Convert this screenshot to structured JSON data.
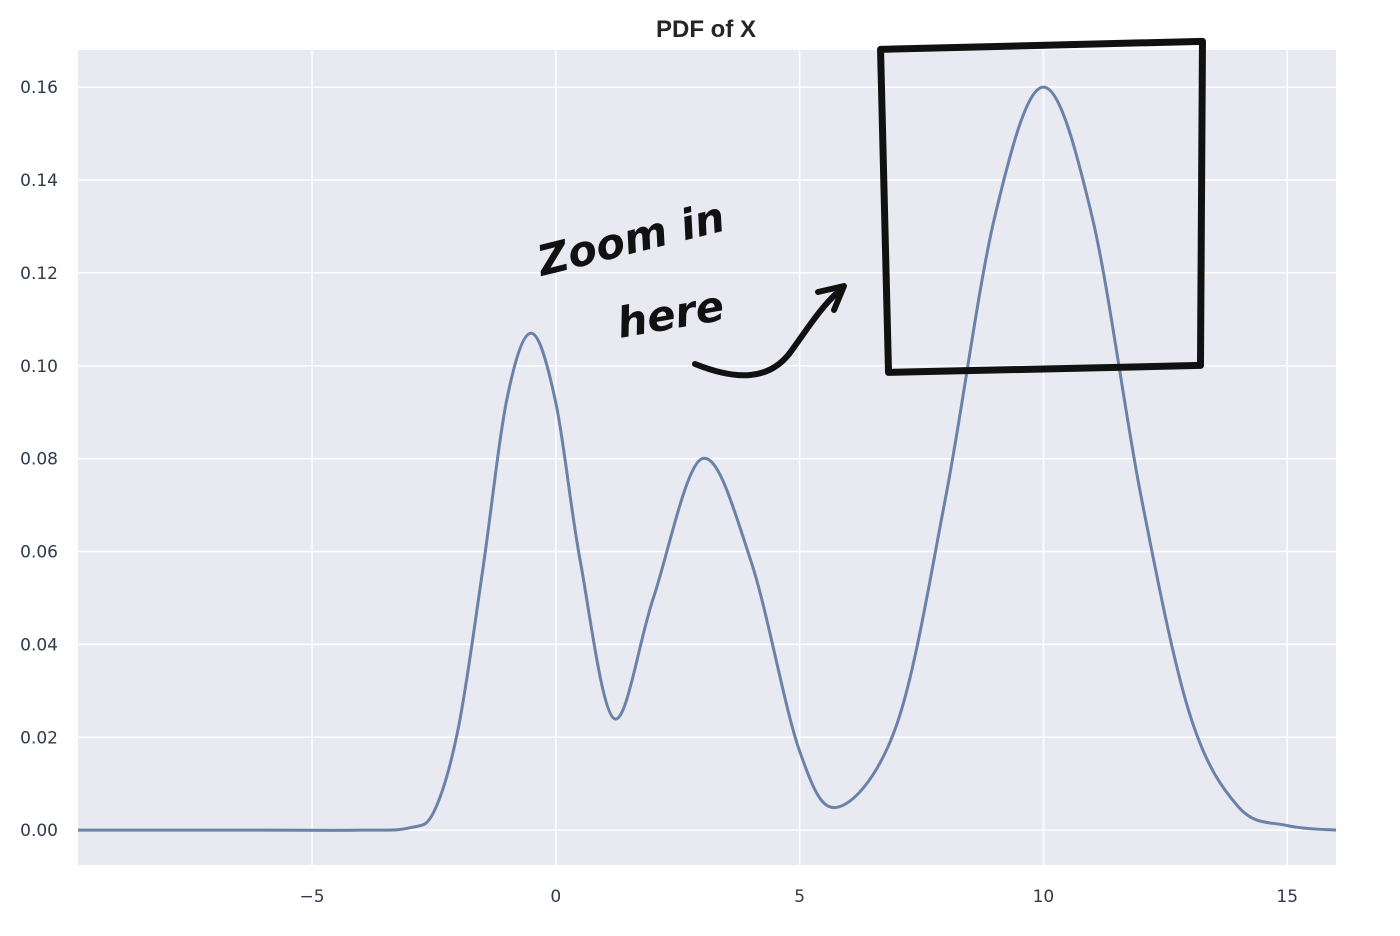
{
  "chart_data": {
    "type": "line",
    "title": "PDF of X",
    "xlabel": "",
    "ylabel": "",
    "xlim": [
      -9.8,
      16.0
    ],
    "ylim": [
      -0.0075,
      0.168
    ],
    "x_ticks": [
      -5,
      0,
      5,
      10,
      15
    ],
    "x_tick_labels": [
      "−5",
      "0",
      "5",
      "10",
      "15"
    ],
    "y_ticks": [
      0.0,
      0.02,
      0.04,
      0.06,
      0.08,
      0.1,
      0.12,
      0.14,
      0.16
    ],
    "y_tick_labels": [
      "0.00",
      "0.02",
      "0.04",
      "0.06",
      "0.08",
      "0.10",
      "0.12",
      "0.14",
      "0.16"
    ],
    "grid": true,
    "background_color": "#e9e9f2",
    "grid_color": "#ffffff",
    "series": [
      {
        "color": "#6b82a8",
        "x": [
          -9.8,
          -6,
          -4,
          -3,
          -2.5,
          -2,
          -1.5,
          -1,
          -0.5,
          0,
          0.5,
          1.2,
          2,
          3,
          4,
          5,
          5.8,
          7,
          8,
          9,
          10,
          11,
          12,
          13,
          14,
          15,
          16
        ],
        "y": [
          0,
          0,
          0,
          0.0005,
          0.004,
          0.022,
          0.056,
          0.093,
          0.107,
          0.092,
          0.058,
          0.024,
          0.05,
          0.08,
          0.058,
          0.017,
          0.005,
          0.023,
          0.072,
          0.132,
          0.16,
          0.132,
          0.072,
          0.025,
          0.005,
          0.001,
          0.0
        ]
      }
    ],
    "annotations": {
      "text_line1": "Zoom in",
      "text_line2": "here",
      "highlight_box_x": [
        6.7,
        13.2
      ],
      "highlight_box_y": [
        0.099,
        0.169
      ]
    }
  }
}
